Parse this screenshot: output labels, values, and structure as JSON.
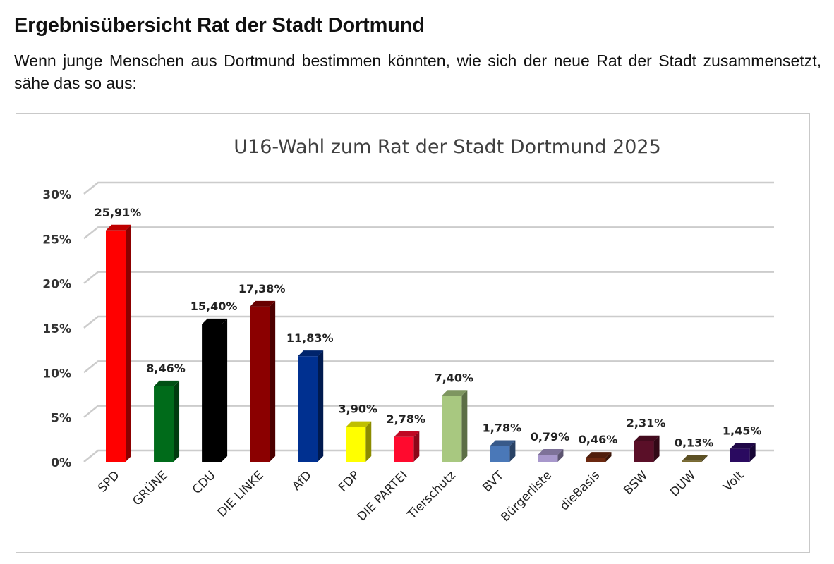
{
  "page": {
    "heading": "Ergebnisübersicht Rat der Stadt Dortmund",
    "intro": "Wenn junge Menschen aus Dortmund bestimmen könnten, wie sich der neue Rat der Stadt zusammensetzt, sähe das so aus:"
  },
  "chart_data": {
    "type": "bar",
    "title": "U16-Wahl zum Rat der Stadt Dortmund 2025",
    "xlabel": "",
    "ylabel": "",
    "ylim": [
      0,
      30
    ],
    "yticks": [
      {
        "value": 0,
        "label": "0%"
      },
      {
        "value": 5,
        "label": "5%"
      },
      {
        "value": 10,
        "label": "10%"
      },
      {
        "value": 15,
        "label": "15%"
      },
      {
        "value": 20,
        "label": "20%"
      },
      {
        "value": 25,
        "label": "25%"
      },
      {
        "value": 30,
        "label": "30%"
      }
    ],
    "grid": true,
    "legend": "none",
    "categories": [
      "SPD",
      "GRÜNE",
      "CDU",
      "DIE LINKE",
      "AfD",
      "FDP",
      "DIE PARTEI",
      "Tierschutz",
      "BVT",
      "Bürgerliste",
      "dieBasis",
      "BSW",
      "DUW",
      "Volt"
    ],
    "values": [
      25.91,
      8.46,
      15.4,
      17.38,
      11.83,
      3.9,
      2.78,
      7.4,
      1.78,
      0.79,
      0.46,
      2.31,
      0.13,
      1.45
    ],
    "data_labels": [
      "25,91%",
      "8,46%",
      "15,40%",
      "17,38%",
      "11,83%",
      "3,90%",
      "2,78%",
      "7,40%",
      "1,78%",
      "0,79%",
      "0,46%",
      "2,31%",
      "0,13%",
      "1,45%"
    ],
    "colors": [
      "#ff0000",
      "#006b1a",
      "#000000",
      "#8b0000",
      "#003090",
      "#ffff00",
      "#ff0a2e",
      "#a8c880",
      "#4a78b8",
      "#a898cc",
      "#6b2810",
      "#5a0f28",
      "#7a6a30",
      "#2a0a60"
    ]
  }
}
